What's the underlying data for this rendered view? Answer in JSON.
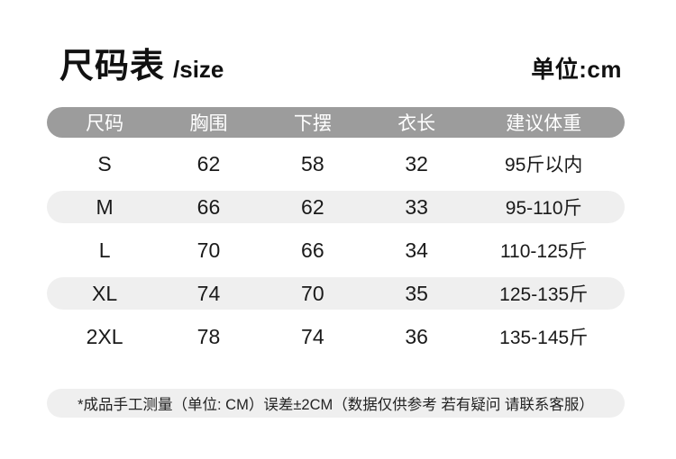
{
  "header": {
    "title": "尺码表",
    "subtitle": "/size",
    "unit": "单位:cm"
  },
  "table": {
    "columns": [
      "尺码",
      "胸围",
      "下摆",
      "衣长",
      "建议体重"
    ],
    "rows": [
      {
        "size": "S",
        "chest": "62",
        "hem": "58",
        "length": "32",
        "weight": "95斤以内"
      },
      {
        "size": "M",
        "chest": "66",
        "hem": "62",
        "length": "33",
        "weight": "95-110斤"
      },
      {
        "size": "L",
        "chest": "70",
        "hem": "66",
        "length": "34",
        "weight": "110-125斤"
      },
      {
        "size": "XL",
        "chest": "74",
        "hem": "70",
        "length": "35",
        "weight": "125-135斤"
      },
      {
        "size": "2XL",
        "chest": "78",
        "hem": "74",
        "length": "36",
        "weight": "135-145斤"
      }
    ]
  },
  "footer": {
    "note": "*成品手工测量（单位: CM）误差±2CM（数据仅供参考 若有疑问  请联系客服）"
  },
  "colors": {
    "header_bg": "#9c9c9c",
    "row_alt_bg": "#efefef",
    "text": "#1a1a1a",
    "header_text": "#ffffff"
  }
}
